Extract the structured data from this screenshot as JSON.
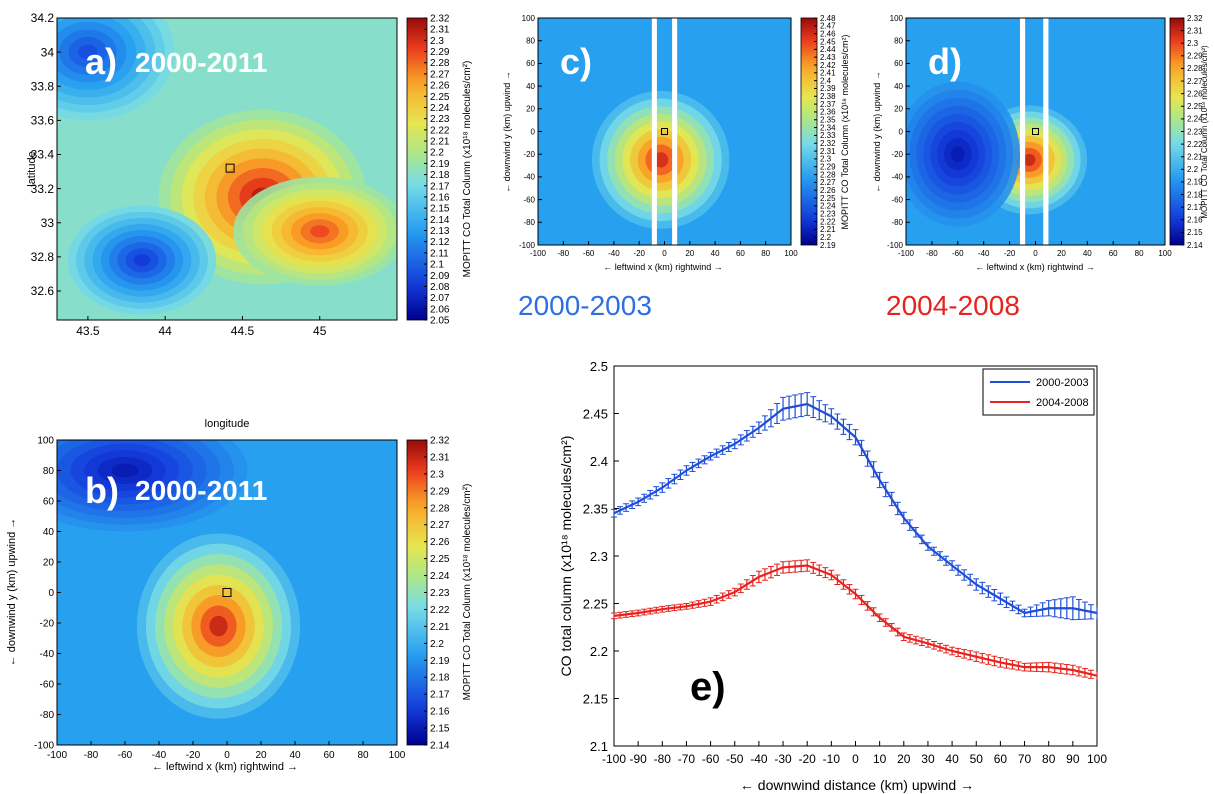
{
  "chart_data": [
    {
      "id": "a",
      "type": "heatmap",
      "panel_label": "a)",
      "period": "2000-2011",
      "xlabel": "longitude",
      "ylabel": "latitude",
      "xticks": [
        "43.5",
        "44",
        "44.5",
        "45"
      ],
      "yticks": [
        "34.2",
        "34",
        "33.8",
        "33.6",
        "33.4",
        "33.2",
        "33",
        "32.8",
        "32.6"
      ],
      "xlim": [
        43.3,
        45.5
      ],
      "ylim": [
        32.43,
        34.2
      ],
      "colorbar": {
        "label": "MOPITT CO Total Column (x10¹⁸ molecules/cm²)",
        "range": [
          2.05,
          2.32
        ],
        "ticks": [
          "2.32",
          "2.31",
          "2.3",
          "2.29",
          "2.28",
          "2.27",
          "2.26",
          "2.25",
          "2.24",
          "2.23",
          "2.22",
          "2.21",
          "2.2",
          "2.19",
          "2.18",
          "2.17",
          "2.16",
          "2.15",
          "2.14",
          "2.13",
          "2.12",
          "2.11",
          "2.1",
          "2.09",
          "2.08",
          "2.07",
          "2.06",
          "2.05"
        ]
      },
      "marker": {
        "x": 44.42,
        "y": 33.32
      },
      "blobs": [
        {
          "x": 44.63,
          "y": 33.15,
          "rx": 0.42,
          "ry": 0.32,
          "value": 2.31
        },
        {
          "x": 45.0,
          "y": 32.95,
          "rx": 0.35,
          "ry": 0.2,
          "value": 2.29
        },
        {
          "x": 43.85,
          "y": 32.78,
          "rx": 0.3,
          "ry": 0.2,
          "value": 2.08
        },
        {
          "x": 43.5,
          "y": 34.0,
          "rx": 0.35,
          "ry": 0.25,
          "value": 2.09
        }
      ]
    },
    {
      "id": "b",
      "type": "heatmap",
      "panel_label": "b)",
      "period": "2000-2011",
      "xlabel": "←  leftwind    x (km)    rightwind  →",
      "ylabel": "←  downwind     y (km)    upwind  →",
      "xticks": [
        "-100",
        "-80",
        "-60",
        "-40",
        "-20",
        "0",
        "20",
        "40",
        "60",
        "80",
        "100"
      ],
      "yticks": [
        "100",
        "80",
        "60",
        "40",
        "20",
        "0",
        "-20",
        "-40",
        "-60",
        "-80",
        "-100"
      ],
      "xlim": [
        -100,
        100
      ],
      "ylim": [
        -100,
        100
      ],
      "colorbar": {
        "label": "MOPITT CO Total Column (x10¹⁸ molecules/cm²)",
        "range": [
          2.14,
          2.32
        ],
        "ticks": [
          "2.32",
          "2.31",
          "2.3",
          "2.29",
          "2.28",
          "2.27",
          "2.26",
          "2.25",
          "2.24",
          "2.23",
          "2.22",
          "2.21",
          "2.2",
          "2.19",
          "2.18",
          "2.17",
          "2.16",
          "2.15",
          "2.14"
        ]
      },
      "marker": {
        "x": 0,
        "y": 0
      },
      "blobs": [
        {
          "x": -5,
          "y": -22,
          "rx": 30,
          "ry": 38,
          "value": 2.31
        },
        {
          "x": -60,
          "y": 80,
          "rx": 45,
          "ry": 25,
          "value": 2.15
        }
      ]
    },
    {
      "id": "c",
      "type": "heatmap",
      "panel_label": "c)",
      "period": "2000-2003",
      "period_color": "#2f6fe6",
      "xlabel": "←  leftwind   x (km)   rightwind  →",
      "ylabel": "←  downwind    y (km)   upwind  →",
      "xticks": [
        "-100",
        "-80",
        "-60",
        "-40",
        "-20",
        "0",
        "20",
        "40",
        "60",
        "80",
        "100"
      ],
      "yticks": [
        "100",
        "80",
        "60",
        "40",
        "20",
        "0",
        "-20",
        "-40",
        "-60",
        "-80",
        "-100"
      ],
      "xlim": [
        -100,
        100
      ],
      "ylim": [
        -100,
        100
      ],
      "colorbar": {
        "label": "MOPITT CO Total Column (x10¹⁸ molecules/cm²)",
        "range": [
          2.19,
          2.48
        ],
        "ticks": [
          "2.48",
          "2.47",
          "2.46",
          "2.45",
          "2.44",
          "2.43",
          "2.42",
          "2.41",
          "2.4",
          "2.39",
          "2.38",
          "2.37",
          "2.36",
          "2.35",
          "2.34",
          "2.33",
          "2.32",
          "2.31",
          "2.3",
          "2.29",
          "2.28",
          "2.27",
          "2.26",
          "2.25",
          "2.24",
          "2.23",
          "2.22",
          "2.21",
          "2.2",
          "2.19"
        ]
      },
      "marker": {
        "x": 0,
        "y": 0
      },
      "strips_x": [
        [
          -10,
          -6
        ],
        [
          6,
          10
        ]
      ],
      "blobs": [
        {
          "x": -3,
          "y": -25,
          "rx": 34,
          "ry": 38,
          "value": 2.46
        }
      ]
    },
    {
      "id": "d",
      "type": "heatmap",
      "panel_label": "d)",
      "period": "2004-2008",
      "period_color": "#e8231f",
      "xlabel": "←  leftwind   x (km)   rightwind  →",
      "ylabel": "←  downwind    y (km)   upwind  →",
      "xticks": [
        "-100",
        "-80",
        "-60",
        "-40",
        "-20",
        "0",
        "20",
        "40",
        "60",
        "80",
        "100"
      ],
      "yticks": [
        "100",
        "80",
        "60",
        "40",
        "20",
        "0",
        "-20",
        "-40",
        "-60",
        "-80",
        "-100"
      ],
      "xlim": [
        -100,
        100
      ],
      "ylim": [
        -100,
        100
      ],
      "colorbar": {
        "label": "MOPITT CO Total Column (x10¹⁸ molecules/cm²)",
        "range": [
          2.14,
          2.32
        ],
        "ticks": [
          "2.32",
          "2.31",
          "2.3",
          "2.29",
          "2.28",
          "2.27",
          "2.26",
          "2.25",
          "2.24",
          "2.23",
          "2.22",
          "2.21",
          "2.2",
          "2.19",
          "2.18",
          "2.17",
          "2.16",
          "2.15",
          "2.14"
        ]
      },
      "marker": {
        "x": 0,
        "y": 0
      },
      "strips_x": [
        [
          -12,
          -8
        ],
        [
          6,
          10
        ]
      ],
      "blobs": [
        {
          "x": -5,
          "y": -25,
          "rx": 28,
          "ry": 30,
          "value": 2.31
        },
        {
          "x": -60,
          "y": -20,
          "rx": 30,
          "ry": 40,
          "value": 2.15
        }
      ]
    },
    {
      "id": "e",
      "type": "line",
      "panel_label": "e)",
      "xlabel": "← downwind    distance (km)    upwind →",
      "ylabel": "CO total column (x10¹⁸ molecules/cm²)",
      "xlim": [
        -100,
        100
      ],
      "ylim": [
        2.1,
        2.5
      ],
      "xticks": [
        "-100",
        "-90",
        "-80",
        "-70",
        "-60",
        "-50",
        "-40",
        "-30",
        "-20",
        "-10",
        "0",
        "10",
        "20",
        "30",
        "40",
        "50",
        "60",
        "70",
        "80",
        "90",
        "100"
      ],
      "yticks": [
        "2.5",
        "2.45",
        "2.4",
        "2.35",
        "2.3",
        "2.25",
        "2.2",
        "2.15",
        "2.1"
      ],
      "legend_position": "top-right",
      "x": [
        -100,
        -90,
        -80,
        -70,
        -60,
        -50,
        -40,
        -30,
        -20,
        -10,
        0,
        10,
        20,
        30,
        40,
        50,
        60,
        70,
        80,
        90,
        100
      ],
      "series": [
        {
          "name": "2000-2003",
          "color": "#1f4fd8",
          "values": [
            2.345,
            2.357,
            2.372,
            2.39,
            2.405,
            2.418,
            2.435,
            2.455,
            2.46,
            2.447,
            2.425,
            2.38,
            2.34,
            2.31,
            2.29,
            2.27,
            2.255,
            2.24,
            2.245,
            2.245,
            2.24
          ],
          "errors": [
            0.004,
            0.004,
            0.005,
            0.005,
            0.004,
            0.005,
            0.006,
            0.012,
            0.012,
            0.008,
            0.008,
            0.008,
            0.006,
            0.004,
            0.005,
            0.006,
            0.006,
            0.004,
            0.008,
            0.012,
            0.006
          ]
        },
        {
          "name": "2004-2008",
          "color": "#e8231f",
          "values": [
            2.237,
            2.24,
            2.244,
            2.247,
            2.252,
            2.262,
            2.278,
            2.288,
            2.29,
            2.28,
            2.26,
            2.235,
            2.215,
            2.208,
            2.2,
            2.194,
            2.188,
            2.183,
            2.183,
            2.18,
            2.174
          ],
          "errors": [
            0.003,
            0.003,
            0.003,
            0.003,
            0.004,
            0.004,
            0.006,
            0.006,
            0.006,
            0.005,
            0.005,
            0.004,
            0.004,
            0.004,
            0.004,
            0.005,
            0.005,
            0.004,
            0.005,
            0.005,
            0.004
          ]
        }
      ]
    }
  ]
}
